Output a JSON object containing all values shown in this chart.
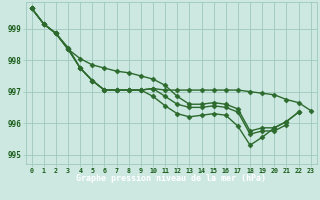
{
  "title": "Graphe pression niveau de la mer (hPa)",
  "hours": [
    0,
    1,
    2,
    3,
    4,
    5,
    6,
    7,
    8,
    9,
    10,
    11,
    12,
    13,
    14,
    15,
    16,
    17,
    18,
    19,
    20,
    21,
    22,
    23
  ],
  "line1": [
    999.65,
    999.15,
    998.85,
    998.35,
    997.75,
    997.35,
    997.05,
    997.05,
    997.05,
    997.05,
    997.1,
    997.05,
    997.05,
    997.05,
    997.05,
    997.05,
    997.05,
    997.05,
    997.0,
    996.95,
    996.9,
    996.75,
    996.65,
    996.4
  ],
  "line2": [
    999.65,
    999.15,
    998.85,
    998.35,
    998.05,
    997.85,
    997.75,
    997.65,
    997.6,
    997.5,
    997.4,
    997.2,
    996.85,
    996.6,
    996.6,
    996.65,
    996.6,
    996.45,
    995.75,
    995.85,
    995.85,
    996.05,
    996.35,
    null
  ],
  "line3": [
    999.65,
    999.15,
    998.85,
    998.35,
    997.75,
    997.35,
    997.05,
    997.05,
    997.05,
    997.05,
    997.1,
    996.85,
    996.6,
    996.5,
    996.5,
    996.55,
    996.5,
    996.35,
    995.65,
    995.75,
    995.75,
    995.95,
    null,
    null
  ],
  "line4": [
    999.65,
    999.15,
    998.85,
    998.4,
    997.75,
    997.35,
    997.05,
    997.05,
    997.05,
    997.05,
    996.85,
    996.55,
    996.3,
    996.2,
    996.25,
    996.3,
    996.25,
    995.9,
    995.3,
    995.55,
    995.85,
    996.05,
    996.35,
    null
  ],
  "line_color": "#2d6a2d",
  "bg_color": "#cce8e0",
  "grid_color": "#9fc8be",
  "text_color": "#1a5c1a",
  "label_bg": "#2d8c2d",
  "ylim": [
    994.7,
    999.85
  ],
  "yticks": [
    995,
    996,
    997,
    998,
    999
  ],
  "marker": "D",
  "marker_size": 2.5,
  "linewidth": 1.0
}
